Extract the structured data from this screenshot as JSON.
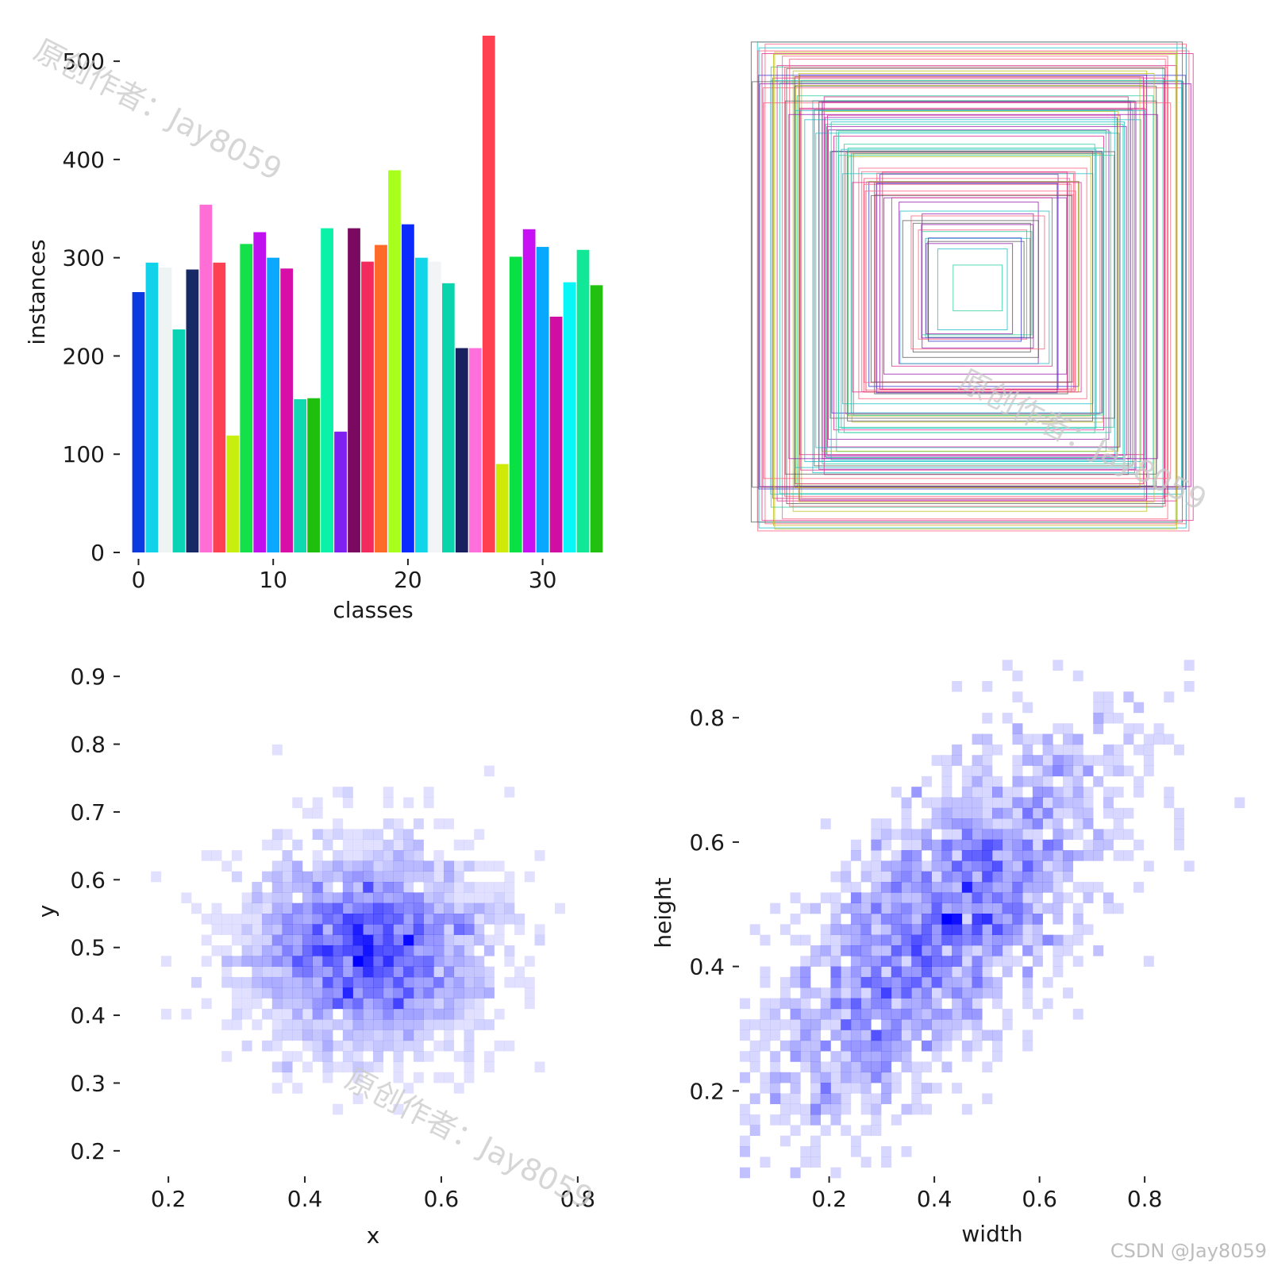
{
  "chart_data": [
    {
      "type": "bar",
      "id": "class-histogram",
      "title": "",
      "xlabel": "classes",
      "ylabel": "instances",
      "xticks": [
        "0",
        "10",
        "20",
        "30"
      ],
      "yticks": [
        "0",
        "100",
        "200",
        "300",
        "400",
        "500"
      ],
      "ylim": [
        0,
        530
      ],
      "categories": [
        0,
        1,
        2,
        3,
        4,
        5,
        6,
        7,
        8,
        9,
        10,
        11,
        12,
        13,
        14,
        15,
        16,
        17,
        18,
        19,
        20,
        21,
        22,
        23,
        24,
        25,
        26,
        27,
        28,
        29,
        30,
        31,
        32,
        33,
        34
      ],
      "values": [
        265,
        295,
        290,
        227,
        288,
        354,
        295,
        119,
        314,
        326,
        300,
        289,
        156,
        157,
        330,
        123,
        330,
        296,
        313,
        389,
        334,
        300,
        296,
        274,
        208,
        208,
        526,
        90,
        301,
        329,
        311,
        240,
        275,
        308,
        272
      ],
      "colors": [
        "#0b3be0",
        "#12d2ea",
        "#eef3f4",
        "#0ad4b4",
        "#182a66",
        "#ff6ed4",
        "#ff3f52",
        "#c8ee10",
        "#14e04a",
        "#c010f0",
        "#0aa8ff",
        "#d80ea8",
        "#10d8b0",
        "#1fbf10",
        "#0af2a8",
        "#8020f0",
        "#7a0a60",
        "#f22a5e",
        "#ff6a28",
        "#a8ff1c",
        "#0a2aff",
        "#10d6e8",
        "#f2f4f6",
        "#0ad4ac",
        "#182060",
        "#ff70dc",
        "#ff4050",
        "#d0ea08",
        "#08e044",
        "#c810f4",
        "#08a8ff",
        "#d00ea4",
        "#08f6f6",
        "#10e898",
        "#22c010"
      ]
    },
    {
      "type": "box-outlines",
      "id": "label-boxes",
      "title": "",
      "box_count": 100,
      "stroke_colors": [
        "#3a3ad0",
        "#9a20b0",
        "#20c0c8",
        "#e03090",
        "#30d0a0",
        "#c0c020",
        "#606060",
        "#ff6080"
      ]
    },
    {
      "type": "heatmap",
      "id": "xy-histogram",
      "title": "",
      "xlabel": "x",
      "ylabel": "y",
      "xticks": [
        "0.2",
        "0.4",
        "0.6",
        "0.8"
      ],
      "yticks": [
        "0.2",
        "0.3",
        "0.4",
        "0.5",
        "0.6",
        "0.7",
        "0.8",
        "0.9"
      ],
      "xlim": [
        0.13,
        0.87
      ],
      "ylim": [
        0.16,
        0.94
      ],
      "center": [
        0.49,
        0.5
      ],
      "spread": [
        0.09,
        0.075
      ],
      "points": 2600,
      "bins": 50,
      "cmap_color": "#0000ff"
    },
    {
      "type": "heatmap",
      "id": "wh-histogram",
      "title": "",
      "xlabel": "width",
      "ylabel": "height",
      "xticks": [
        "0.2",
        "0.4",
        "0.6",
        "0.8"
      ],
      "yticks": [
        "0.2",
        "0.4",
        "0.6",
        "0.8"
      ],
      "xlim": [
        0.03,
        0.99
      ],
      "ylim": [
        0.06,
        0.91
      ],
      "center": [
        0.4,
        0.45
      ],
      "spread": [
        0.17,
        0.16
      ],
      "correlation": 0.72,
      "points": 2200,
      "bins": 50,
      "cmap_color": "#0000ff"
    }
  ],
  "watermarks": {
    "author_text": "原创作者：Jay8059",
    "credit_text": "CSDN @Jay8059"
  }
}
